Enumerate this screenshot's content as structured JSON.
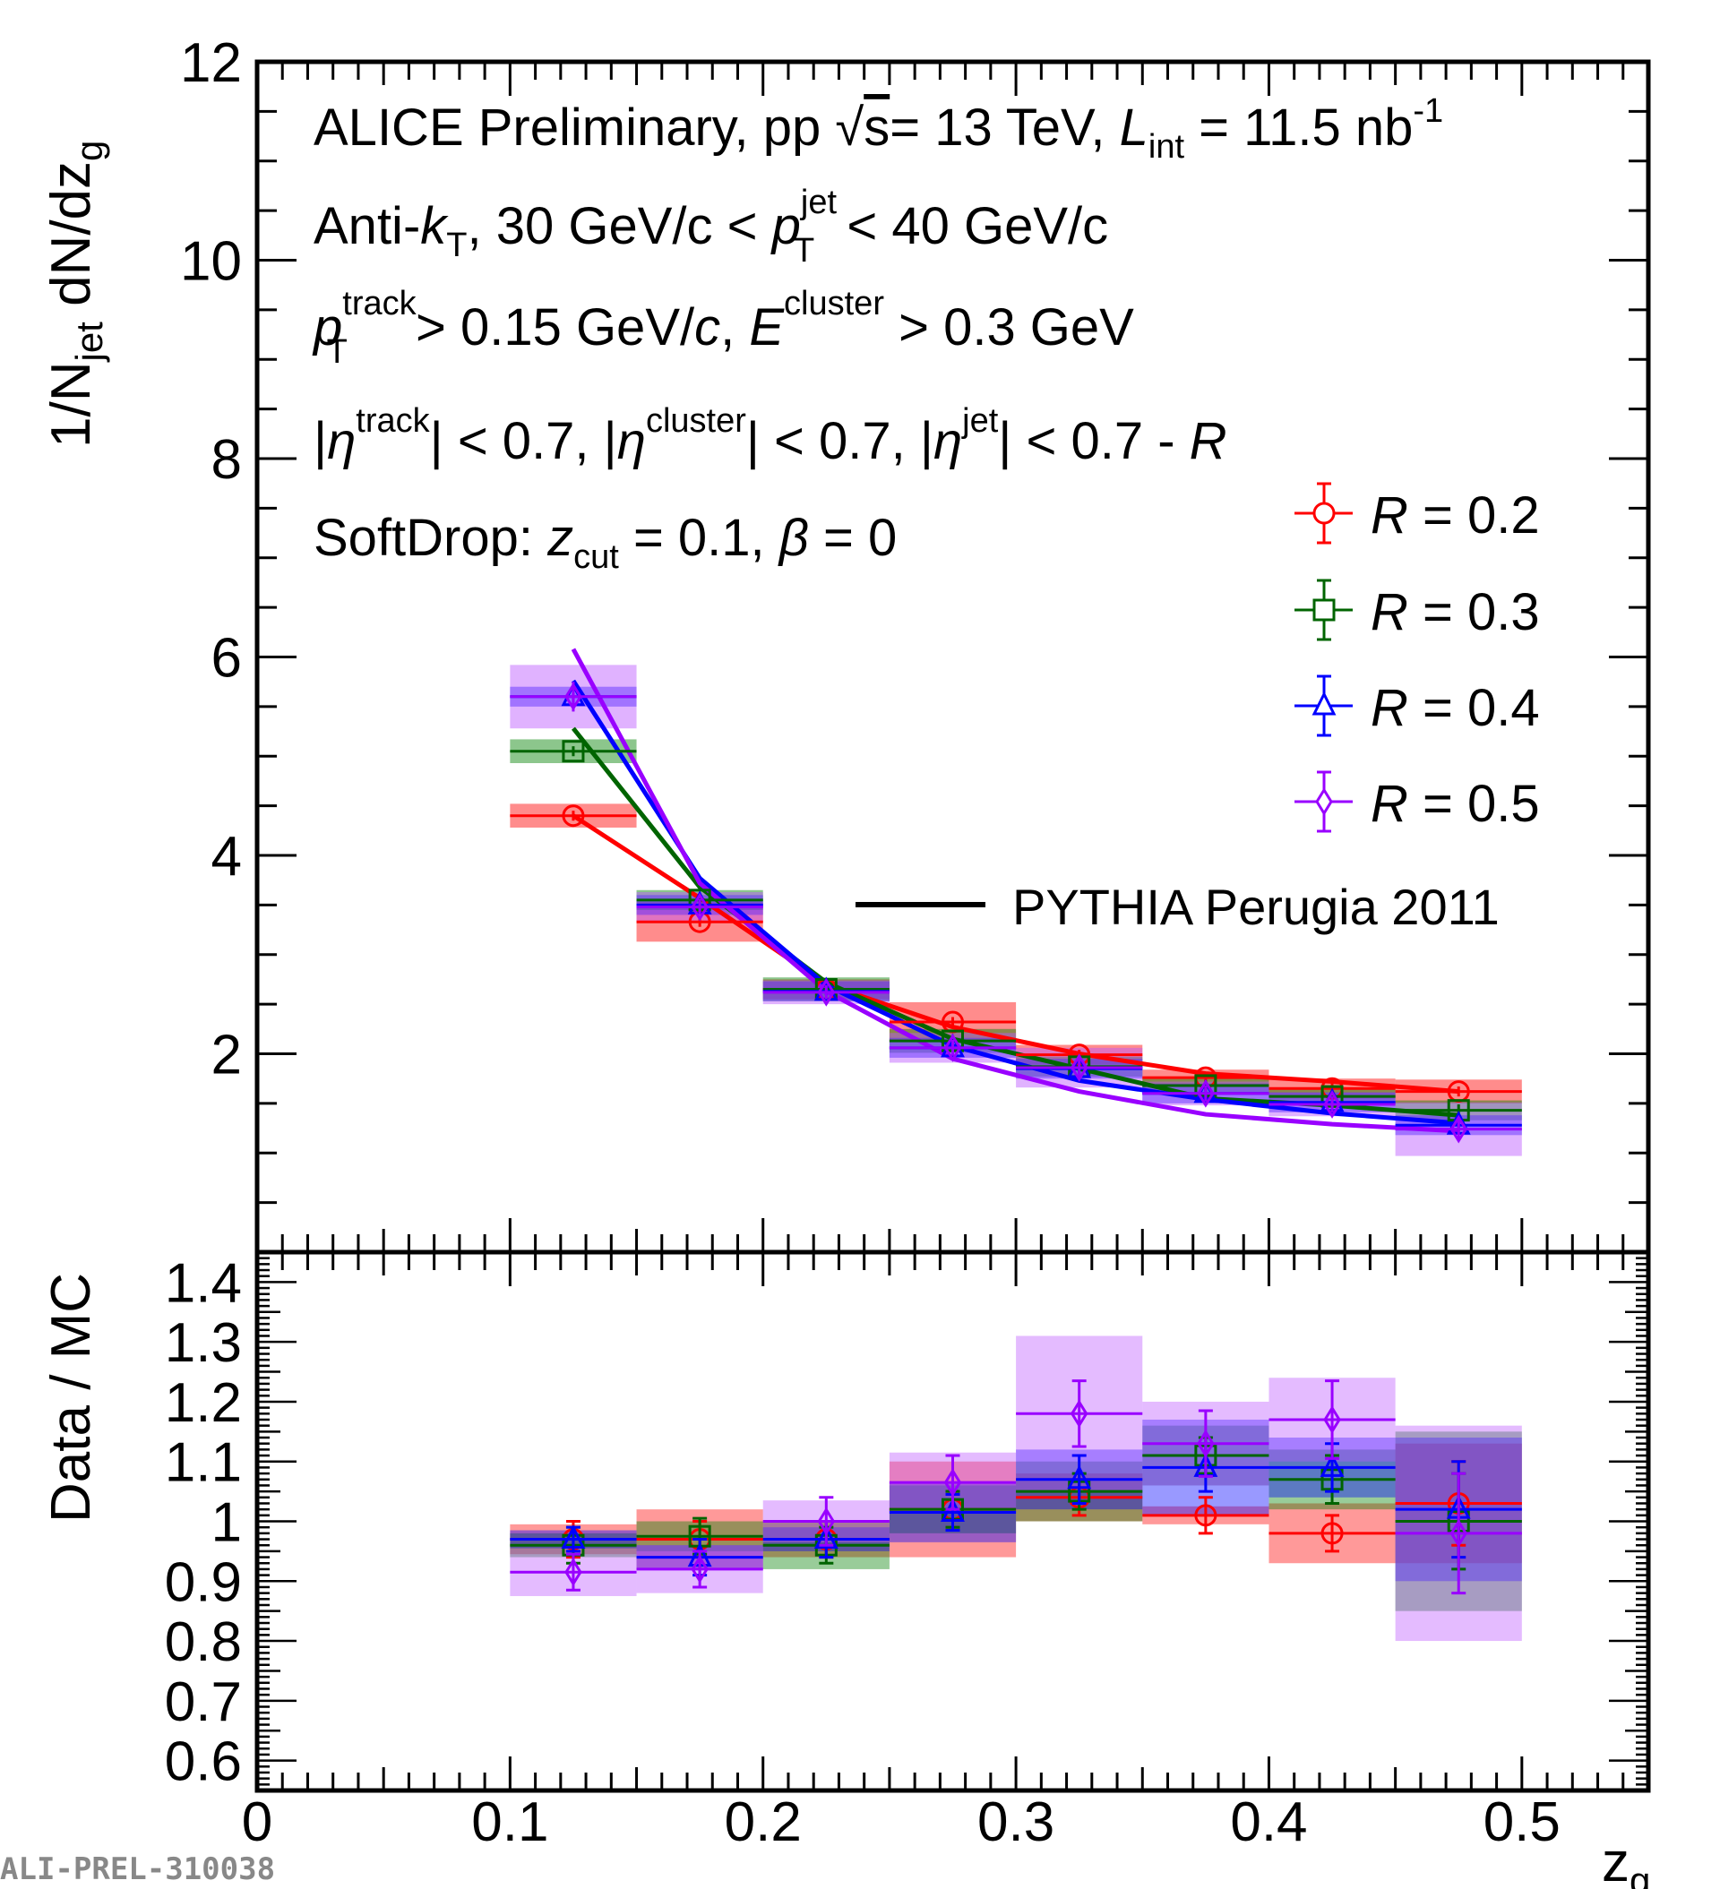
{
  "chart_data": {
    "type": "scatter",
    "xlabel": "z",
    "xlabel_sub": "g",
    "xlim": [
      0,
      0.55
    ],
    "x_ticks": [
      "0",
      "0.1",
      "0.2",
      "0.3",
      "0.4",
      "0.5"
    ],
    "top": {
      "ylabel": {
        "pre": "1/N",
        "sub1": "jet",
        "mid": " dN/dz",
        "sub2": "g"
      },
      "ylim": [
        0,
        12
      ],
      "y_ticks": [
        "2",
        "4",
        "6",
        "8",
        "10",
        "12"
      ],
      "annotations": {
        "line1": {
          "a": "ALICE Preliminary, pp ",
          "sqrt": "√",
          "b": "s",
          "c": "= 13 TeV, ",
          "L": "L",
          "int": "int",
          "d": " = 11.5 nb",
          "sup": "-1"
        },
        "line2": {
          "a": "Anti-",
          "k": "k",
          "T": "T",
          "b": ", 30 GeV/c < ",
          "p": "p",
          "jet": "jet",
          "T2": "T",
          "c": " < 40 GeV/c"
        },
        "line3": {
          "p": "p",
          "track": "track",
          "T": "T",
          "a": " > 0.15 GeV/",
          "c": "c",
          "b": ", ",
          "E": "E",
          "cluster": "cluster",
          "d": " > 0.3 GeV"
        },
        "line4": {
          "a": "|",
          "eta1": "η",
          "s1": "track",
          "b": "| < 0.7, |",
          "eta2": "η",
          "s2": "cluster",
          "c": "| < 0.7, |",
          "eta3": "η",
          "s3": "jet",
          "d": "| < 0.7 - ",
          "R": "R"
        },
        "line5": {
          "a": "SoftDrop: ",
          "z": "z",
          "cut": "cut",
          "b": " = 0.1, ",
          "beta": "β",
          "c": " = 0"
        }
      }
    },
    "bottom": {
      "ylabel": "Data / MC",
      "ylim": [
        0.55,
        1.45
      ],
      "y_ticks": [
        "0.6",
        "0.7",
        "0.8",
        "0.9",
        "1",
        "1.1",
        "1.2",
        "1.3",
        "1.4"
      ]
    },
    "legend": {
      "entries": [
        {
          "R": "R",
          "text": " = 0.2"
        },
        {
          "R": "R",
          "text": " = 0.3"
        },
        {
          "R": "R",
          "text": " = 0.4"
        },
        {
          "R": "R",
          "text": " = 0.5"
        }
      ],
      "model": "PYTHIA Perugia 2011",
      "placement": "right"
    },
    "bins": [
      [
        0.1,
        0.15
      ],
      [
        0.15,
        0.2
      ],
      [
        0.2,
        0.25
      ],
      [
        0.25,
        0.3
      ],
      [
        0.3,
        0.35
      ],
      [
        0.35,
        0.4
      ],
      [
        0.4,
        0.45
      ],
      [
        0.45,
        0.5
      ]
    ],
    "x": [
      0.125,
      0.175,
      0.225,
      0.275,
      0.325,
      0.375,
      0.425,
      0.475
    ],
    "series": [
      {
        "name": "R = 0.2",
        "color": "#ff0000",
        "fill": "#ff0000",
        "marker": "circle",
        "values": [
          4.4,
          3.33,
          2.65,
          2.32,
          1.99,
          1.76,
          1.65,
          1.62
        ],
        "stat_err": [
          0.05,
          0.05,
          0.04,
          0.05,
          0.05,
          0.05,
          0.05,
          0.05
        ],
        "syst_err": [
          0.12,
          0.2,
          0.1,
          0.2,
          0.1,
          0.08,
          0.1,
          0.12
        ],
        "model": [
          4.4,
          3.57,
          2.7,
          2.27,
          2.0,
          1.8,
          1.72,
          1.62
        ],
        "ratio": [
          0.97,
          0.97,
          0.97,
          1.02,
          1.04,
          1.01,
          0.98,
          1.03
        ],
        "ratio_stat": [
          0.03,
          0.03,
          0.03,
          0.03,
          0.03,
          0.03,
          0.03,
          0.07
        ],
        "ratio_syst": [
          0.025,
          0.05,
          0.03,
          0.08,
          0.04,
          0.015,
          0.05,
          0.1
        ]
      },
      {
        "name": "R = 0.3",
        "color": "#006400",
        "fill": "#008000",
        "marker": "square",
        "values": [
          5.05,
          3.55,
          2.65,
          2.13,
          1.87,
          1.68,
          1.57,
          1.43
        ],
        "stat_err": [
          0.05,
          0.05,
          0.04,
          0.05,
          0.05,
          0.05,
          0.05,
          0.06
        ],
        "syst_err": [
          0.12,
          0.1,
          0.12,
          0.12,
          0.1,
          0.08,
          0.08,
          0.1
        ],
        "model": [
          5.28,
          3.68,
          2.72,
          2.15,
          1.85,
          1.55,
          1.48,
          1.38
        ],
        "ratio": [
          0.96,
          0.975,
          0.96,
          1.02,
          1.05,
          1.11,
          1.07,
          1.0
        ],
        "ratio_stat": [
          0.03,
          0.03,
          0.03,
          0.03,
          0.03,
          0.03,
          0.04,
          0.08
        ],
        "ratio_syst": [
          0.02,
          0.025,
          0.04,
          0.04,
          0.05,
          0.05,
          0.05,
          0.15
        ]
      },
      {
        "name": "R = 0.4",
        "color": "#0000ff",
        "fill": "#0000ff",
        "marker": "triangle",
        "values": [
          5.6,
          3.5,
          2.63,
          2.06,
          1.85,
          1.6,
          1.51,
          1.28
        ],
        "stat_err": [
          0.08,
          0.05,
          0.04,
          0.05,
          0.05,
          0.06,
          0.06,
          0.06
        ],
        "syst_err": [
          0.1,
          0.1,
          0.1,
          0.1,
          0.1,
          0.1,
          0.1,
          0.1
        ],
        "model": [
          5.76,
          3.77,
          2.69,
          2.08,
          1.73,
          1.54,
          1.4,
          1.3
        ],
        "ratio": [
          0.97,
          0.94,
          0.97,
          1.015,
          1.07,
          1.09,
          1.09,
          1.02
        ],
        "ratio_stat": [
          0.02,
          0.03,
          0.03,
          0.03,
          0.04,
          0.04,
          0.04,
          0.08
        ],
        "ratio_syst": [
          0.015,
          0.02,
          0.02,
          0.05,
          0.05,
          0.08,
          0.05,
          0.12
        ]
      },
      {
        "name": "R = 0.5",
        "color": "#9900ff",
        "fill": "#bb55ff",
        "marker": "diamond",
        "values": [
          5.6,
          3.48,
          2.62,
          2.06,
          1.86,
          1.6,
          1.49,
          1.24
        ],
        "stat_err": [
          0.15,
          0.08,
          0.07,
          0.08,
          0.1,
          0.08,
          0.08,
          0.12
        ],
        "syst_err": [
          0.32,
          0.15,
          0.12,
          0.15,
          0.2,
          0.12,
          0.12,
          0.27
        ],
        "model": [
          6.08,
          3.72,
          2.63,
          1.95,
          1.62,
          1.39,
          1.29,
          1.22
        ],
        "ratio": [
          0.915,
          0.92,
          1.0,
          1.065,
          1.18,
          1.13,
          1.17,
          0.98
        ],
        "ratio_stat": [
          0.03,
          0.03,
          0.04,
          0.045,
          0.055,
          0.055,
          0.065,
          0.1
        ],
        "ratio_syst": [
          0.04,
          0.04,
          0.035,
          0.05,
          0.13,
          0.07,
          0.07,
          0.18
        ]
      }
    ]
  },
  "footer": {
    "id": "ALI-PREL-310038"
  }
}
